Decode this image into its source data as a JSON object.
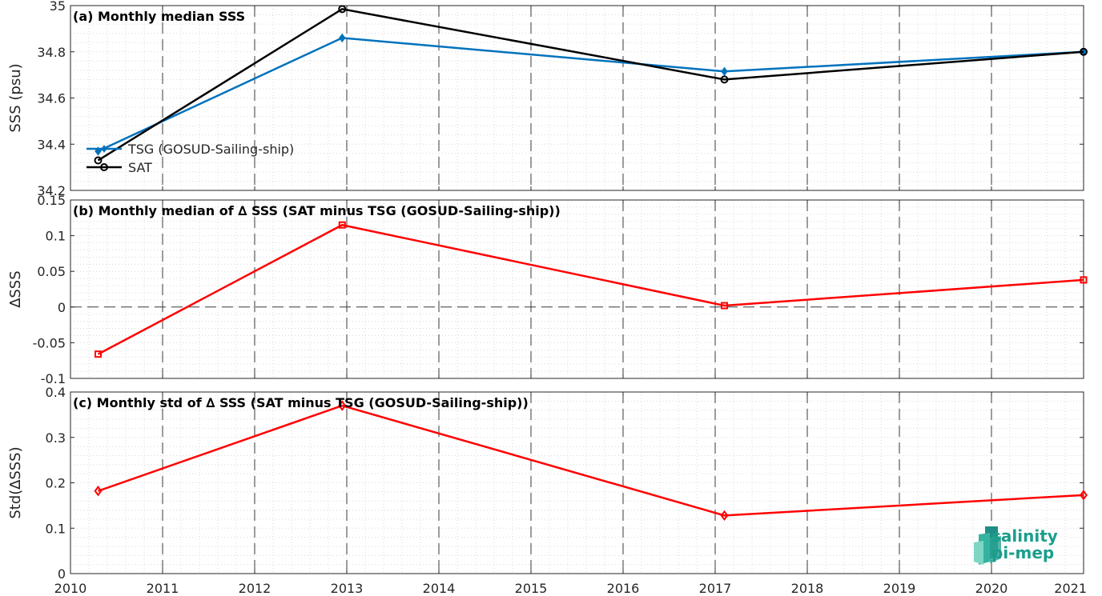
{
  "chart_data": [
    {
      "type": "line",
      "title": "(a) Monthly median SSS",
      "ylabel": "SSS (psu)",
      "xlim": [
        2010,
        2021
      ],
      "ylim": [
        34.2,
        35
      ],
      "yticks": [
        "34.2",
        "34.4",
        "34.6",
        "34.8",
        "35"
      ],
      "grid": true,
      "legend_position": "bottom-left",
      "series": [
        {
          "name": "TSG (GOSUD-Sailing-ship)",
          "color": "#0072BD",
          "marker": "diamond",
          "x": [
            2010.3,
            2012.95,
            2017.1,
            2021.0
          ],
          "values": [
            34.37,
            34.86,
            34.715,
            34.8
          ]
        },
        {
          "name": "SAT",
          "color": "#000000",
          "marker": "circle",
          "x": [
            2010.3,
            2012.95,
            2017.1,
            2021.0
          ],
          "values": [
            34.33,
            34.985,
            34.68,
            34.8
          ]
        }
      ]
    },
    {
      "type": "line",
      "title": "(b) Monthly median of ∆ SSS (SAT minus TSG (GOSUD-Sailing-ship))",
      "ylabel": "∆SSS",
      "xlim": [
        2010,
        2021
      ],
      "ylim": [
        -0.1,
        0.15
      ],
      "yticks": [
        "-0.1",
        "-0.05",
        "0",
        "0.05",
        "0.1",
        "0.15"
      ],
      "grid": true,
      "zero_line": true,
      "series": [
        {
          "color": "#FF0000",
          "marker": "square",
          "x": [
            2010.3,
            2012.95,
            2017.1,
            2021.0
          ],
          "values": [
            -0.066,
            0.115,
            0.002,
            0.038
          ]
        }
      ]
    },
    {
      "type": "line",
      "title": "(c) Monthly std of ∆ SSS (SAT minus TSG (GOSUD-Sailing-ship))",
      "ylabel": "Std(∆SSS)",
      "xlim": [
        2010,
        2021
      ],
      "ylim": [
        0,
        0.4
      ],
      "yticks": [
        "0",
        "0.1",
        "0.2",
        "0.3",
        "0.4"
      ],
      "grid": true,
      "series": [
        {
          "color": "#FF0000",
          "marker": "diamond",
          "x": [
            2010.3,
            2012.95,
            2017.1,
            2021.0
          ],
          "values": [
            0.182,
            0.37,
            0.128,
            0.173
          ]
        }
      ]
    }
  ],
  "xticks": [
    "2010",
    "2011",
    "2012",
    "2013",
    "2014",
    "2015",
    "2016",
    "2017",
    "2018",
    "2019",
    "2020",
    "2021"
  ],
  "logo": {
    "line1": "salinity",
    "line2": "pi-mep",
    "color": "#1a9e8c"
  }
}
